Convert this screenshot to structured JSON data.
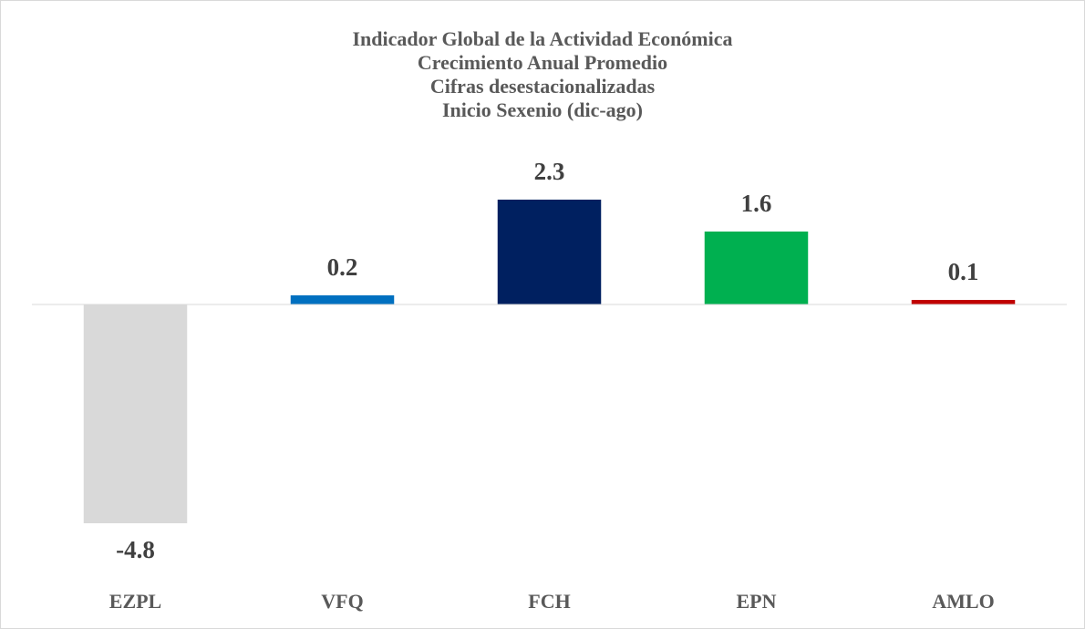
{
  "chart_data": {
    "type": "bar",
    "title": [
      "Indicador Global de la Actividad Económica",
      "Crecimiento Anual Promedio",
      "Cifras desestacionalizadas",
      "Inicio Sexenio (dic-ago)"
    ],
    "categories": [
      "EZPL",
      "VFQ",
      "FCH",
      "EPN",
      "AMLO"
    ],
    "values": [
      -4.8,
      0.2,
      2.3,
      1.6,
      0.1
    ],
    "colors": [
      "#d9d9d9",
      "#0070c0",
      "#002060",
      "#00b050",
      "#c00000"
    ],
    "ylim": [
      -5,
      3
    ]
  }
}
